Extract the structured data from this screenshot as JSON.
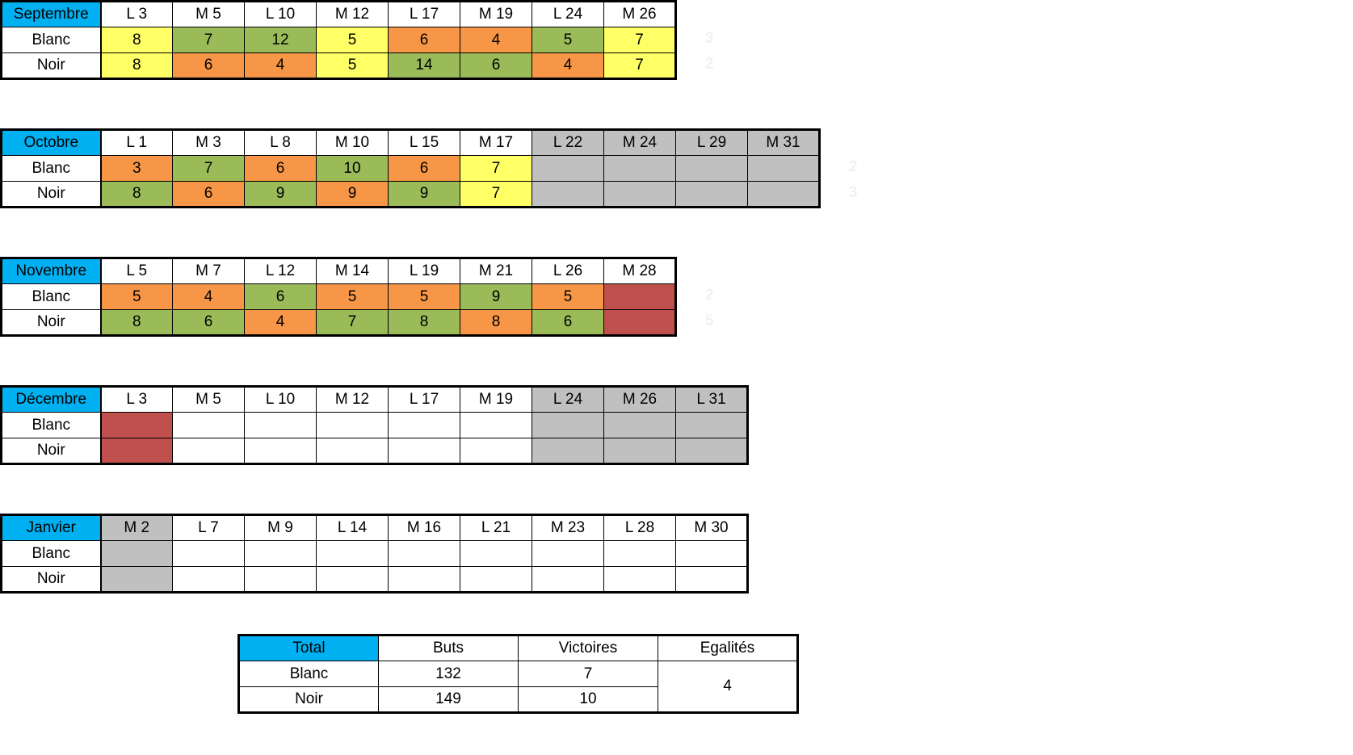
{
  "colors": {
    "header_month": "#00b0f0",
    "yellow": "#ffff66",
    "green": "#9bbb59",
    "orange": "#f79646",
    "red": "#c0504d",
    "grey": "#c0c0c0"
  },
  "months": [
    {
      "name": "Septembre",
      "days": [
        "L 3",
        "M 5",
        "L 10",
        "M 12",
        "L 17",
        "M 19",
        "L 24",
        "M 26"
      ],
      "day_colors": [
        "w",
        "w",
        "w",
        "w",
        "w",
        "w",
        "w",
        "w"
      ],
      "blanc_label": "Blanc",
      "noir_label": "Noir",
      "blanc": [
        "8",
        "7",
        "12",
        "5",
        "6",
        "4",
        "5",
        "7"
      ],
      "blanc_colors": [
        "y",
        "g",
        "g",
        "y",
        "o",
        "o",
        "g",
        "y"
      ],
      "noir": [
        "8",
        "6",
        "4",
        "5",
        "14",
        "6",
        "4",
        "7"
      ],
      "noir_colors": [
        "y",
        "o",
        "o",
        "y",
        "g",
        "g",
        "o",
        "y"
      ],
      "side_blanc": "3",
      "side_noir": "2"
    },
    {
      "name": "Octobre",
      "days": [
        "L 1",
        "M 3",
        "L 8",
        "M 10",
        "L 15",
        "M 17",
        "L 22",
        "M 24",
        "L 29",
        "M 31"
      ],
      "day_colors": [
        "w",
        "w",
        "w",
        "w",
        "w",
        "w",
        "gr",
        "gr",
        "gr",
        "gr"
      ],
      "blanc_label": "Blanc",
      "noir_label": "Noir",
      "blanc": [
        "3",
        "7",
        "6",
        "10",
        "6",
        "7",
        "",
        "",
        "",
        ""
      ],
      "blanc_colors": [
        "o",
        "g",
        "o",
        "g",
        "o",
        "y",
        "gr",
        "gr",
        "gr",
        "gr"
      ],
      "noir": [
        "8",
        "6",
        "9",
        "9",
        "9",
        "7",
        "",
        "",
        "",
        ""
      ],
      "noir_colors": [
        "g",
        "o",
        "g",
        "o",
        "g",
        "y",
        "gr",
        "gr",
        "gr",
        "gr"
      ],
      "side_blanc": "2",
      "side_noir": "3"
    },
    {
      "name": "Novembre",
      "days": [
        "L 5",
        "M 7",
        "L 12",
        "M 14",
        "L 19",
        "M 21",
        "L 26",
        "M 28"
      ],
      "day_colors": [
        "w",
        "w",
        "w",
        "w",
        "w",
        "w",
        "w",
        "w"
      ],
      "blanc_label": "Blanc",
      "noir_label": "Noir",
      "blanc": [
        "5",
        "4",
        "6",
        "5",
        "5",
        "9",
        "5",
        ""
      ],
      "blanc_colors": [
        "o",
        "o",
        "g",
        "o",
        "o",
        "g",
        "o",
        "r"
      ],
      "noir": [
        "8",
        "6",
        "4",
        "7",
        "8",
        "8",
        "6",
        ""
      ],
      "noir_colors": [
        "g",
        "g",
        "o",
        "g",
        "g",
        "o",
        "g",
        "r"
      ],
      "side_blanc": "2",
      "side_noir": "5"
    },
    {
      "name": "Décembre",
      "days": [
        "L 3",
        "M 5",
        "L 10",
        "M 12",
        "L 17",
        "M 19",
        "L 24",
        "M 26",
        "L 31"
      ],
      "day_colors": [
        "w",
        "w",
        "w",
        "w",
        "w",
        "w",
        "gr",
        "gr",
        "gr"
      ],
      "blanc_label": "Blanc",
      "noir_label": "Noir",
      "blanc": [
        "",
        "",
        "",
        "",
        "",
        "",
        "",
        "",
        ""
      ],
      "blanc_colors": [
        "r",
        "w",
        "w",
        "w",
        "w",
        "w",
        "gr",
        "gr",
        "gr"
      ],
      "noir": [
        "",
        "",
        "",
        "",
        "",
        "",
        "",
        "",
        ""
      ],
      "noir_colors": [
        "r",
        "w",
        "w",
        "w",
        "w",
        "w",
        "gr",
        "gr",
        "gr"
      ],
      "side_blanc": "",
      "side_noir": ""
    },
    {
      "name": "Janvier",
      "days": [
        "M 2",
        "L 7",
        "M 9",
        "L 14",
        "M 16",
        "L 21",
        "M 23",
        "L 28",
        "M 30"
      ],
      "day_colors": [
        "gr",
        "w",
        "w",
        "w",
        "w",
        "w",
        "w",
        "w",
        "w"
      ],
      "blanc_label": "Blanc",
      "noir_label": "Noir",
      "blanc": [
        "",
        "",
        "",
        "",
        "",
        "",
        "",
        "",
        ""
      ],
      "blanc_colors": [
        "gr",
        "w",
        "w",
        "w",
        "w",
        "w",
        "w",
        "w",
        "w"
      ],
      "noir": [
        "",
        "",
        "",
        "",
        "",
        "",
        "",
        "",
        ""
      ],
      "noir_colors": [
        "gr",
        "w",
        "w",
        "w",
        "w",
        "w",
        "w",
        "w",
        "w"
      ],
      "side_blanc": "",
      "side_noir": ""
    }
  ],
  "total": {
    "title": "Total",
    "headers": [
      "Buts",
      "Victoires",
      "Egalités"
    ],
    "blanc_label": "Blanc",
    "noir_label": "Noir",
    "blanc_buts": "132",
    "blanc_victoires": "7",
    "noir_buts": "149",
    "noir_victoires": "10",
    "egalites": "4"
  }
}
